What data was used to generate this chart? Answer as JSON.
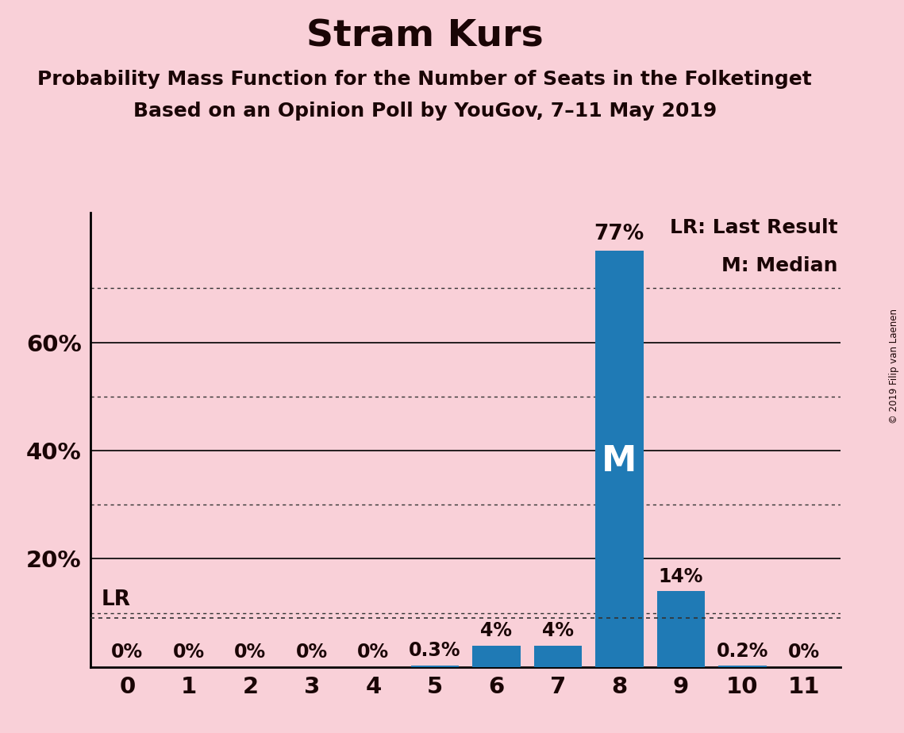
{
  "title": "Stram Kurs",
  "subtitle1": "Probability Mass Function for the Number of Seats in the Folketinget",
  "subtitle2": "Based on an Opinion Poll by YouGov, 7–11 May 2019",
  "copyright": "© 2019 Filip van Laenen",
  "categories": [
    0,
    1,
    2,
    3,
    4,
    5,
    6,
    7,
    8,
    9,
    10,
    11
  ],
  "values": [
    0.0,
    0.0,
    0.0,
    0.0,
    0.0,
    0.3,
    4.0,
    4.0,
    77.0,
    14.0,
    0.2,
    0.0
  ],
  "bar_labels": [
    "0%",
    "0%",
    "0%",
    "0%",
    "0%",
    "0.3%",
    "4%",
    "4%",
    "77%",
    "14%",
    "0.2%",
    "0%"
  ],
  "bar_color": "#1f7ab5",
  "background_color": "#f9d0d8",
  "text_color": "#1a0505",
  "median_bar": 8,
  "lr_value": 9.0,
  "ylim_max": 84,
  "solid_gridlines": [
    20,
    40,
    60
  ],
  "dotted_gridlines": [
    10,
    30,
    50,
    70
  ],
  "ytick_labels": [
    "20%",
    "40%",
    "60%"
  ],
  "ytick_values": [
    20,
    40,
    60
  ],
  "title_fontsize": 34,
  "subtitle_fontsize": 18,
  "label_fontsize": 17,
  "tick_fontsize": 21,
  "legend_fontsize": 18,
  "m_fontsize": 32,
  "bar_width": 0.78
}
